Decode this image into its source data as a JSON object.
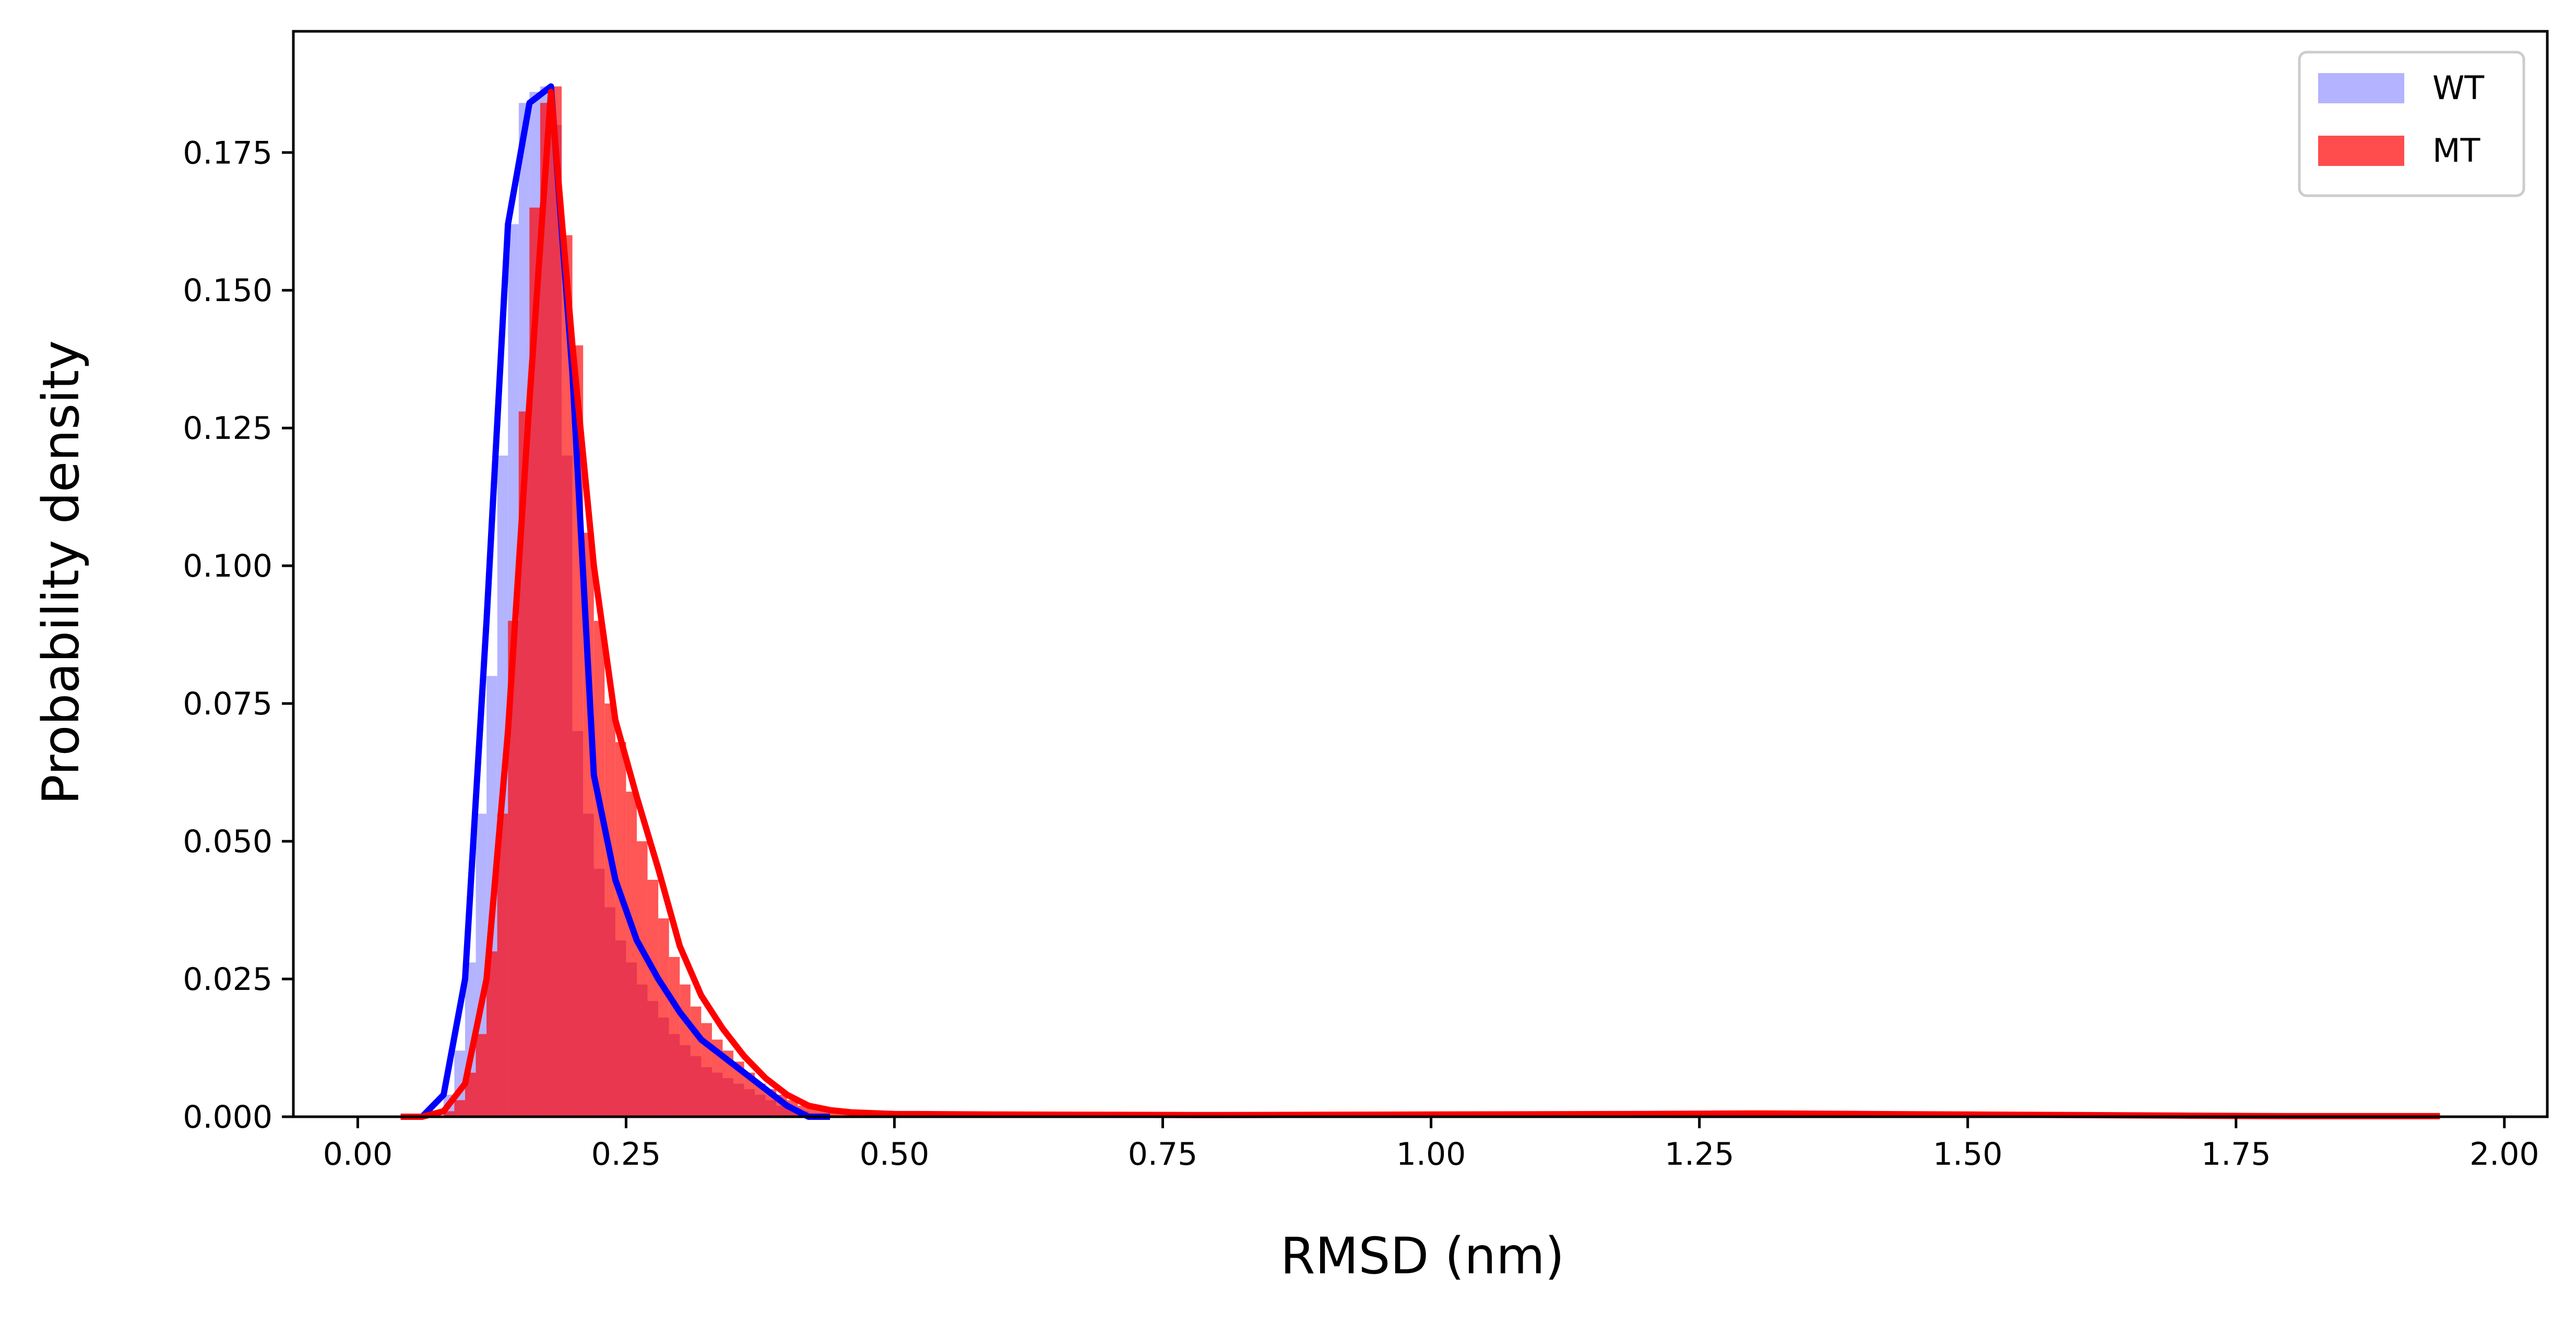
{
  "chart_data": {
    "type": "area",
    "title": "",
    "xlabel": "RMSD (nm)",
    "ylabel": "Probability density",
    "xlim": [
      -0.06,
      2.04
    ],
    "ylim": [
      0,
      0.197
    ],
    "x_ticks": [
      "0.00",
      "0.25",
      "0.50",
      "0.75",
      "1.00",
      "1.25",
      "1.50",
      "1.75",
      "2.00"
    ],
    "y_ticks": [
      "0.000",
      "0.025",
      "0.050",
      "0.075",
      "0.100",
      "0.125",
      "0.150",
      "0.175"
    ],
    "grid": false,
    "legend": {
      "position": "top-right",
      "entries": [
        "WT",
        "MT"
      ]
    },
    "colors": {
      "WT_hist": "#b3b3ff",
      "MT_hist": "#ff4d4d",
      "overlap_hist": "#e8374f",
      "WT_line": "#0000ff",
      "MT_line": "#ff0000"
    },
    "series": [
      {
        "name": "WT",
        "histogram": {
          "bin_width": 0.01,
          "bin_starts": [
            0.08,
            0.09,
            0.1,
            0.11,
            0.12,
            0.13,
            0.14,
            0.15,
            0.16,
            0.17,
            0.18,
            0.19,
            0.2,
            0.21,
            0.22,
            0.23,
            0.24,
            0.25,
            0.26,
            0.27,
            0.28,
            0.29,
            0.3,
            0.31,
            0.32,
            0.33,
            0.34,
            0.35,
            0.36,
            0.37,
            0.38,
            0.39,
            0.4,
            0.41
          ],
          "values": [
            0.004,
            0.012,
            0.028,
            0.055,
            0.08,
            0.12,
            0.162,
            0.184,
            0.186,
            0.187,
            0.18,
            0.12,
            0.07,
            0.055,
            0.045,
            0.038,
            0.032,
            0.028,
            0.024,
            0.021,
            0.018,
            0.015,
            0.013,
            0.011,
            0.009,
            0.008,
            0.007,
            0.006,
            0.005,
            0.004,
            0.003,
            0.002,
            0.0015,
            0.001
          ]
        },
        "density_curve": {
          "x": [
            0.04,
            0.06,
            0.08,
            0.1,
            0.12,
            0.14,
            0.16,
            0.18,
            0.2,
            0.22,
            0.24,
            0.26,
            0.28,
            0.3,
            0.32,
            0.34,
            0.36,
            0.38,
            0.4,
            0.42,
            0.44
          ],
          "y": [
            0,
            0,
            0.004,
            0.025,
            0.09,
            0.162,
            0.184,
            0.187,
            0.135,
            0.062,
            0.043,
            0.032,
            0.025,
            0.019,
            0.014,
            0.011,
            0.008,
            0.005,
            0.002,
            0,
            0
          ]
        }
      },
      {
        "name": "MT",
        "histogram": {
          "bin_width": 0.01,
          "bin_starts": [
            0.08,
            0.09,
            0.1,
            0.11,
            0.12,
            0.13,
            0.14,
            0.15,
            0.16,
            0.17,
            0.18,
            0.19,
            0.2,
            0.21,
            0.22,
            0.23,
            0.24,
            0.25,
            0.26,
            0.27,
            0.28,
            0.29,
            0.3,
            0.31,
            0.32,
            0.33,
            0.34,
            0.35,
            0.36,
            0.37,
            0.38,
            0.39,
            0.4,
            0.41,
            0.42,
            0.43,
            0.44,
            0.45
          ],
          "values": [
            0.001,
            0.003,
            0.008,
            0.015,
            0.03,
            0.055,
            0.09,
            0.128,
            0.165,
            0.184,
            0.187,
            0.16,
            0.14,
            0.106,
            0.09,
            0.075,
            0.068,
            0.059,
            0.05,
            0.043,
            0.036,
            0.029,
            0.024,
            0.02,
            0.017,
            0.014,
            0.012,
            0.01,
            0.008,
            0.006,
            0.005,
            0.004,
            0.003,
            0.002,
            0.0015,
            0.001,
            0.0007,
            0.0005
          ]
        },
        "density_curve": {
          "x": [
            0.04,
            0.06,
            0.08,
            0.1,
            0.12,
            0.14,
            0.16,
            0.18,
            0.2,
            0.22,
            0.24,
            0.26,
            0.28,
            0.3,
            0.32,
            0.34,
            0.36,
            0.38,
            0.4,
            0.42,
            0.44,
            0.46,
            0.5,
            0.6,
            0.8,
            1.0,
            1.2,
            1.3,
            1.4,
            1.5,
            1.6,
            1.7,
            1.8,
            1.94
          ],
          "y": [
            0,
            0,
            0.001,
            0.006,
            0.025,
            0.07,
            0.13,
            0.186,
            0.14,
            0.1,
            0.072,
            0.058,
            0.045,
            0.031,
            0.022,
            0.016,
            0.011,
            0.007,
            0.004,
            0.002,
            0.0012,
            0.0008,
            0.0005,
            0.0004,
            0.0003,
            0.0004,
            0.0005,
            0.0006,
            0.0005,
            0.0004,
            0.0003,
            0.0002,
            0.0001,
            0.0001
          ]
        }
      }
    ]
  }
}
